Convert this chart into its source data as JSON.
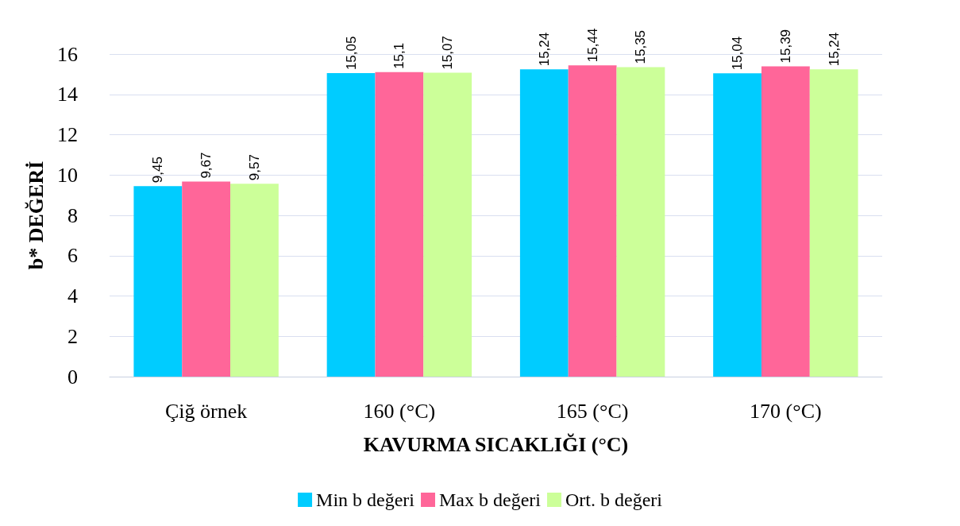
{
  "chart_data": {
    "type": "bar",
    "xlabel": "KAVURMA SICAKLIĞI (°C)",
    "ylabel": "b* DEĞERİ",
    "categories": [
      "Çiğ örnek",
      "160 (°C)",
      "165 (°C)",
      "170 (°C)"
    ],
    "series": [
      {
        "name": "Min b değeri",
        "color": "#00ccff",
        "values": [
          9.45,
          15.05,
          15.24,
          15.04
        ],
        "value_labels": [
          "9,45",
          "15,05",
          "15,24",
          "15,04"
        ]
      },
      {
        "name": "Max b değeri",
        "color": "#ff6699",
        "values": [
          9.67,
          15.1,
          15.44,
          15.39
        ],
        "value_labels": [
          "9,67",
          "15,1",
          "15,44",
          "15,39"
        ]
      },
      {
        "name": "Ort. b değeri",
        "color": "#ccff99",
        "values": [
          9.57,
          15.07,
          15.35,
          15.24
        ],
        "value_labels": [
          "9,57",
          "15,07",
          "15,35",
          "15,24"
        ]
      }
    ],
    "ylim": [
      0,
      16
    ],
    "yticks": [
      0,
      2,
      4,
      6,
      8,
      10,
      12,
      14,
      16
    ],
    "grid": "y",
    "legend": "bottom"
  }
}
